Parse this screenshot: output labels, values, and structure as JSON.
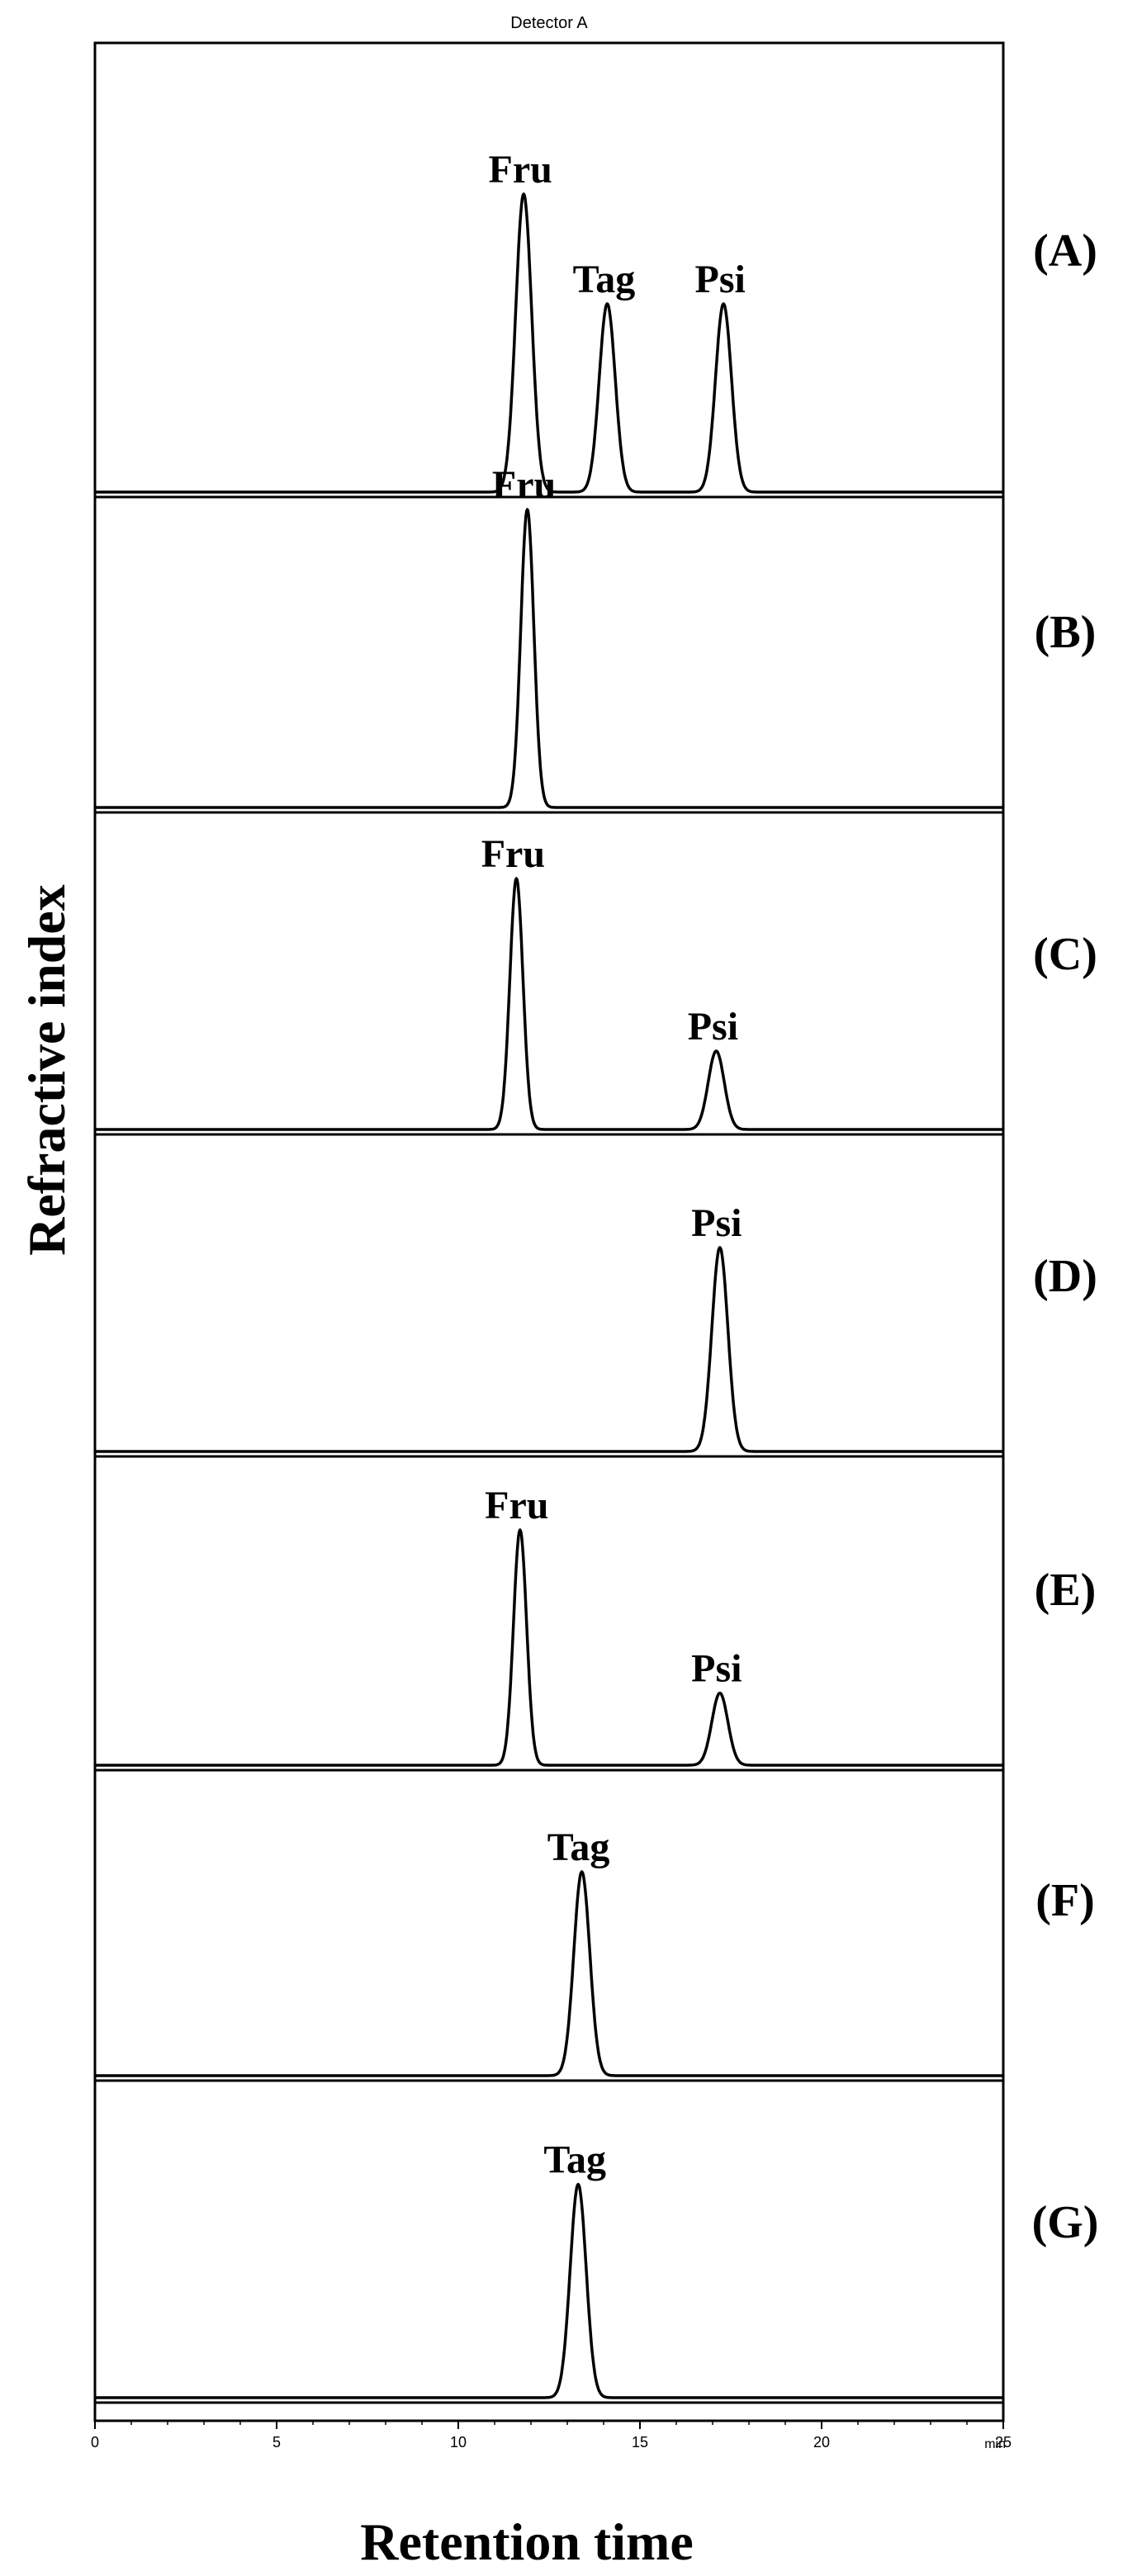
{
  "chart_data": {
    "type": "line",
    "title": "Detector A",
    "xlabel": "Retention time",
    "ylabel": "Refractive index",
    "x_unit": "min",
    "xlim": [
      0,
      25
    ],
    "xticks": [
      0,
      5,
      10,
      15,
      20,
      25
    ],
    "grid": false,
    "panels": [
      {
        "label": "(A)",
        "peaks": [
          {
            "name": "Fru",
            "x": 11.8,
            "height": 0.95,
            "width": 0.22
          },
          {
            "name": "Tag",
            "x": 14.1,
            "height": 0.6,
            "width": 0.22
          },
          {
            "name": "Psi",
            "x": 17.3,
            "height": 0.6,
            "width": 0.22
          }
        ]
      },
      {
        "label": "(B)",
        "peaks": [
          {
            "name": "Fru",
            "x": 11.9,
            "height": 0.95,
            "width": 0.18
          }
        ]
      },
      {
        "label": "(C)",
        "peaks": [
          {
            "name": "Fru",
            "x": 11.6,
            "height": 0.8,
            "width": 0.18
          },
          {
            "name": "Psi",
            "x": 17.1,
            "height": 0.25,
            "width": 0.22
          }
        ]
      },
      {
        "label": "(D)",
        "peaks": [
          {
            "name": "Psi",
            "x": 17.2,
            "height": 0.65,
            "width": 0.22
          }
        ]
      },
      {
        "label": "(E)",
        "peaks": [
          {
            "name": "Fru",
            "x": 11.7,
            "height": 0.75,
            "width": 0.18
          },
          {
            "name": "Psi",
            "x": 17.2,
            "height": 0.23,
            "width": 0.22
          }
        ]
      },
      {
        "label": "(F)",
        "peaks": [
          {
            "name": "Tag",
            "x": 13.4,
            "height": 0.65,
            "width": 0.22
          }
        ]
      },
      {
        "label": "(G)",
        "peaks": [
          {
            "name": "Tag",
            "x": 13.3,
            "height": 0.68,
            "width": 0.22
          }
        ]
      }
    ]
  }
}
